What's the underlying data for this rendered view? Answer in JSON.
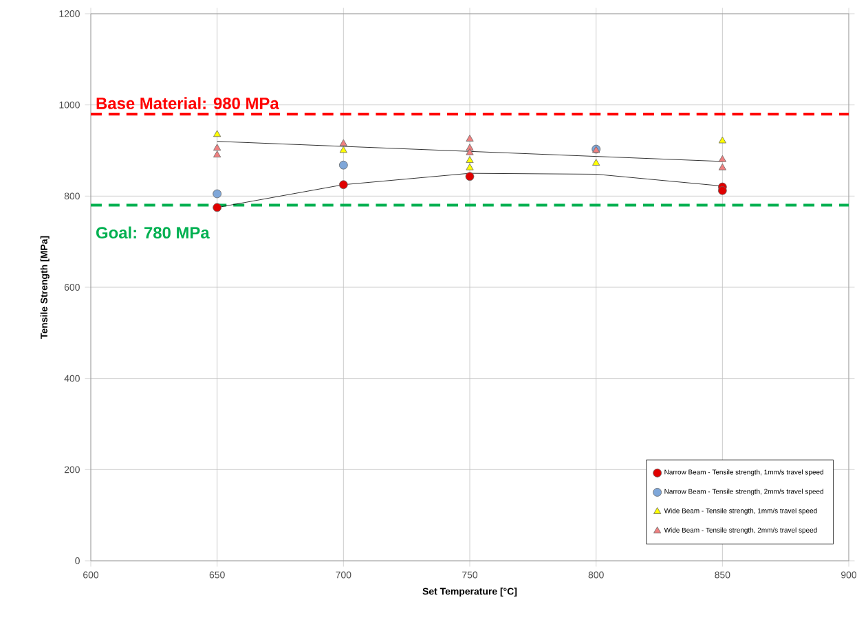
{
  "chart_data": {
    "type": "scatter",
    "xlabel": "Set Temperature [°C]",
    "ylabel": "Tensile Strength [MPa]",
    "xlim": [
      600,
      900
    ],
    "ylim": [
      0,
      1200
    ],
    "xticks": [
      600,
      650,
      700,
      750,
      800,
      850,
      900
    ],
    "yticks": [
      0,
      200,
      400,
      600,
      800,
      1000,
      1200
    ],
    "grid": true,
    "legend": "bottom right",
    "ref_lines": [
      {
        "axis": "y",
        "value": 980,
        "label": "Base Material: 980 MPa",
        "color": "#ff0000",
        "line_style": "dashed"
      },
      {
        "axis": "y",
        "value": 780,
        "label": "Goal: 780 MPa",
        "color": "#00b050",
        "line_style": "dashed"
      }
    ],
    "series": [
      {
        "type": "line",
        "color": "#000000",
        "marker": "none",
        "x": [
          650,
          700,
          750,
          800,
          850
        ],
        "values": [
          920,
          909,
          898,
          887,
          876
        ]
      },
      {
        "type": "line",
        "color": "#000000",
        "marker": "none",
        "x": [
          650,
          700,
          750,
          800,
          850
        ],
        "values": [
          775,
          825,
          850,
          848,
          822
        ]
      },
      {
        "name": "Narrow Beam - Tensile strength, 1mm/s travel speed",
        "color": "#e00000",
        "marker": "circle",
        "x": [
          650,
          700,
          750,
          850,
          850
        ],
        "values": [
          775,
          825,
          843,
          820,
          812
        ]
      },
      {
        "name": "Narrow Beam - Tensile strength, 2mm/s travel speed",
        "color": "#7fa7d9",
        "marker": "circle",
        "x": [
          650,
          700,
          800
        ],
        "values": [
          805,
          868,
          903
        ]
      },
      {
        "name": "Wide Beam - Tensile strength, 1mm/s travel speed",
        "color": "#ffff00",
        "marker": "triangle",
        "x": [
          650,
          700,
          750,
          750,
          800,
          850
        ],
        "values": [
          935,
          900,
          878,
          862,
          872,
          921
        ]
      },
      {
        "name": "Wide Beam - Tensile strength, 2mm/s travel speed",
        "color": "#f08080",
        "marker": "triangle",
        "x": [
          650,
          650,
          700,
          750,
          750,
          750,
          800,
          850,
          850
        ],
        "values": [
          905,
          890,
          915,
          925,
          905,
          895,
          900,
          880,
          862
        ]
      }
    ]
  }
}
